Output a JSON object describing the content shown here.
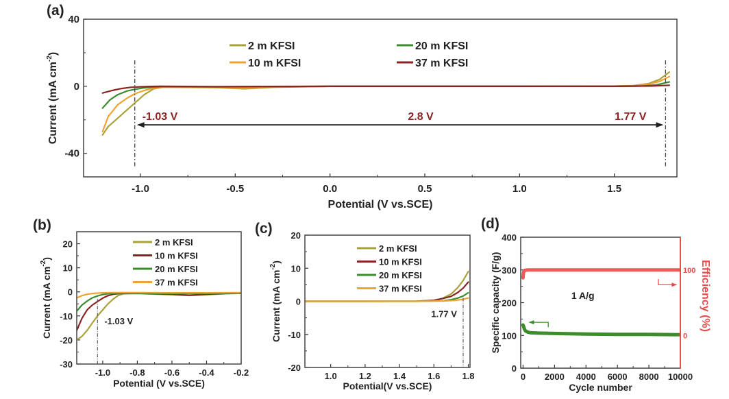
{
  "chart_data": [
    {
      "id": "a",
      "type": "line",
      "panel_label": "(a)",
      "xlabel": "Potential (V vs.SCE)",
      "ylabel": "Current (mA cm-2)",
      "ylabel_parts": {
        "main": "Current (mA cm",
        "sup": "-2",
        "close": ")"
      },
      "xlim": [
        -1.3,
        1.83
      ],
      "ylim": [
        -54,
        40
      ],
      "xticks": [
        -1.0,
        -0.5,
        0.0,
        0.5,
        1.0,
        1.5
      ],
      "xtick_labels": [
        "-1.0",
        "-0.5",
        "0.0",
        "0.5",
        "1.0",
        "1.5"
      ],
      "yticks": [
        40,
        0,
        -40
      ],
      "ytick_labels": [
        "40",
        "0",
        "-40"
      ],
      "legend": {
        "placement": "top-center",
        "columns": 2
      },
      "series": [
        {
          "name": "2 m KFSI",
          "color": "#a8a23a",
          "x": [
            -1.2,
            -1.17,
            -1.12,
            -1.07,
            -1.03,
            -0.98,
            -0.93,
            -0.88,
            -0.6,
            -0.45,
            -0.3,
            0.0,
            0.5,
            1.0,
            1.5,
            1.6,
            1.68,
            1.74,
            1.79
          ],
          "y": [
            -29,
            -24,
            -19,
            -14,
            -10,
            -5,
            -1.5,
            -0.5,
            -0.8,
            -1.5,
            -0.6,
            0,
            0,
            0,
            0.1,
            0.4,
            1.6,
            4.2,
            8.5
          ]
        },
        {
          "name": "10 m KFSI",
          "color": "#f0a232",
          "x": [
            -1.2,
            -1.17,
            -1.12,
            -1.07,
            -1.03,
            -0.98,
            -0.93,
            -0.88,
            -0.6,
            -0.45,
            -0.3,
            0.0,
            0.5,
            1.0,
            1.5,
            1.6,
            1.68,
            1.74,
            1.79
          ],
          "y": [
            -27,
            -18,
            -11,
            -7,
            -4.5,
            -2.5,
            -1.0,
            -0.5,
            -0.6,
            -0.9,
            -0.4,
            0,
            0,
            0,
            0.1,
            0.3,
            1.2,
            3.0,
            5.8
          ]
        },
        {
          "name": "20 m KFSI",
          "color": "#3c8c2c",
          "x": [
            -1.2,
            -1.16,
            -1.12,
            -1.07,
            -1.03,
            -0.98,
            -0.93,
            -0.88,
            -0.6,
            -0.3,
            0.0,
            0.5,
            1.0,
            1.5,
            1.65,
            1.72,
            1.79
          ],
          "y": [
            -13,
            -8,
            -5,
            -2.8,
            -1.8,
            -0.9,
            -0.4,
            -0.2,
            -0.3,
            -0.2,
            0,
            0,
            0,
            0,
            0.2,
            0.8,
            2.6
          ]
        },
        {
          "name": "37 m KFSI",
          "color": "#8b2323",
          "x": [
            -1.2,
            -1.15,
            -1.1,
            -1.05,
            -1.0,
            -0.95,
            -0.9,
            -0.6,
            -0.3,
            0.0,
            0.5,
            1.0,
            1.5,
            1.7,
            1.79
          ],
          "y": [
            -4,
            -2.5,
            -1.3,
            -0.6,
            -0.3,
            -0.1,
            0,
            -0.2,
            -0.1,
            0,
            0,
            0,
            0,
            0.2,
            0.6
          ]
        }
      ],
      "annotations": {
        "vline_left": -1.03,
        "vline_right": 1.77,
        "arrow_y": -23,
        "left_label": "-1.03 V",
        "center_label": "2.8 V",
        "right_label": "1.77 V",
        "label_color": "#8b2323"
      }
    },
    {
      "id": "b",
      "type": "line",
      "panel_label": "(b)",
      "xlabel": "Potential (V vs.SCE)",
      "ylabel_parts": {
        "main": "Current (mA cm",
        "sup": "-2",
        "close": ")"
      },
      "xlim": [
        -1.15,
        -0.2
      ],
      "ylim": [
        -30,
        25
      ],
      "xticks": [
        -1.0,
        -0.8,
        -0.6,
        -0.4,
        -0.2
      ],
      "xtick_labels": [
        "-1.0",
        "-0.8",
        "-0.6",
        "-0.4",
        "-0.2"
      ],
      "yticks": [
        20,
        10,
        0,
        -10,
        -20,
        -30
      ],
      "ytick_labels": [
        "20",
        "10",
        "0",
        "-10",
        "-20",
        "-30"
      ],
      "legend": {
        "placement": "top-right",
        "columns": 1
      },
      "series": [
        {
          "name": "2 m KFSI",
          "color": "#a8a23a",
          "x": [
            -1.15,
            -1.12,
            -1.09,
            -1.06,
            -1.03,
            -1.0,
            -0.97,
            -0.94,
            -0.91,
            -0.88,
            -0.8,
            -0.6,
            -0.5,
            -0.4,
            -0.3,
            -0.2
          ],
          "y": [
            -20,
            -18.5,
            -16,
            -13,
            -10,
            -7.5,
            -5,
            -3,
            -1.5,
            -0.8,
            -0.7,
            -1.2,
            -1.5,
            -1.2,
            -0.8,
            -0.6
          ]
        },
        {
          "name": "10 m KFSI",
          "color": "#8b2323",
          "x": [
            -1.15,
            -1.12,
            -1.09,
            -1.06,
            -1.03,
            -1.0,
            -0.97,
            -0.94,
            -0.9,
            -0.8,
            -0.6,
            -0.5,
            -0.4,
            -0.3,
            -0.2
          ],
          "y": [
            -16,
            -11,
            -7.5,
            -5.5,
            -4,
            -2.6,
            -1.6,
            -1.0,
            -0.7,
            -0.6,
            -1.0,
            -1.4,
            -1.0,
            -0.7,
            -0.5
          ]
        },
        {
          "name": "20 m KFSI",
          "color": "#3c8c2c",
          "x": [
            -1.15,
            -1.12,
            -1.09,
            -1.06,
            -1.03,
            -1.0,
            -0.96,
            -0.92,
            -0.85,
            -0.6,
            -0.4,
            -0.2
          ],
          "y": [
            -8,
            -5.5,
            -3.8,
            -2.5,
            -1.7,
            -1.1,
            -0.7,
            -0.5,
            -0.5,
            -0.7,
            -0.6,
            -0.5
          ]
        },
        {
          "name": "37 m KFSI",
          "color": "#f0a232",
          "x": [
            -1.15,
            -1.12,
            -1.09,
            -1.06,
            -1.03,
            -1.0,
            -0.95,
            -0.8,
            -0.6,
            -0.4,
            -0.2
          ],
          "y": [
            -2.5,
            -1.6,
            -1.0,
            -0.7,
            -0.5,
            -0.4,
            -0.3,
            -0.3,
            -0.4,
            -0.4,
            -0.3
          ]
        }
      ],
      "annotations": {
        "vline": -1.03,
        "label": "-1.03 V"
      }
    },
    {
      "id": "c",
      "type": "line",
      "panel_label": "(c)",
      "xlabel": "Potential(V vs.SCE)",
      "ylabel_parts": {
        "main": "Current (mA cm",
        "sup": "-2",
        "close": ")"
      },
      "xlim": [
        0.85,
        1.81
      ],
      "ylim": [
        -20,
        20
      ],
      "xticks": [
        1.0,
        1.2,
        1.4,
        1.6,
        1.8
      ],
      "xtick_labels": [
        "1.0",
        "1.2",
        "1.4",
        "1.6",
        "1.8"
      ],
      "yticks": [
        20,
        10,
        0,
        -10,
        -20
      ],
      "ytick_labels": [
        "20",
        "10",
        "0",
        "-10",
        "-20"
      ],
      "legend": {
        "placement": "top-center",
        "columns": 1
      },
      "series": [
        {
          "name": "2 m KFSI",
          "color": "#a8a23a",
          "x": [
            0.85,
            1.2,
            1.5,
            1.6,
            1.65,
            1.7,
            1.74,
            1.77,
            1.8
          ],
          "y": [
            0,
            0,
            0.05,
            0.3,
            0.9,
            2.2,
            4.2,
            6.3,
            9
          ]
        },
        {
          "name": "10 m KFSI",
          "color": "#8b2323",
          "x": [
            0.85,
            1.2,
            1.5,
            1.6,
            1.65,
            1.7,
            1.74,
            1.77,
            1.8
          ],
          "y": [
            0,
            0,
            0.05,
            0.3,
            0.8,
            1.5,
            2.7,
            4.0,
            5.8
          ]
        },
        {
          "name": "20 m KFSI",
          "color": "#3c8c2c",
          "x": [
            0.85,
            1.2,
            1.5,
            1.65,
            1.7,
            1.74,
            1.77,
            1.8
          ],
          "y": [
            0,
            0,
            0,
            0.15,
            0.5,
            1.0,
            1.6,
            2.6
          ]
        },
        {
          "name": "37 m KFSI",
          "color": "#f0a232",
          "x": [
            0.85,
            1.2,
            1.5,
            1.65,
            1.72,
            1.77,
            1.8
          ],
          "y": [
            0,
            0,
            0,
            0.1,
            0.3,
            0.6,
            1.0
          ]
        }
      ],
      "annotations": {
        "vline": 1.77,
        "label": "1.77 V"
      }
    },
    {
      "id": "d",
      "type": "line",
      "panel_label": "(d)",
      "xlabel": "Cycle number",
      "ylabel": "Specific capacity (F/g)",
      "ylabel_right": "Efficiency (%)",
      "xlim": [
        -150,
        10000
      ],
      "ylim": [
        0,
        400
      ],
      "ylim_right_mapping": {
        "0": 100,
        "100": 300
      },
      "xticks": [
        0,
        2000,
        4000,
        6000,
        8000,
        10000
      ],
      "xtick_labels": [
        "0",
        "2000",
        "4000",
        "6000",
        "8000",
        "10000"
      ],
      "yticks": [
        0,
        100,
        200,
        300,
        400
      ],
      "ytick_labels": [
        "0",
        "100",
        "200",
        "300",
        "400"
      ],
      "yticks_right": [
        0,
        100
      ],
      "ytick_labels_right": [
        "0",
        "100"
      ],
      "series": [
        {
          "name": "Specific capacity",
          "axis": "left",
          "color": "#3c8c2c",
          "x": [
            0,
            30,
            80,
            150,
            300,
            500,
            1000,
            2000,
            4000,
            6000,
            8000,
            10000
          ],
          "y": [
            132,
            128,
            120,
            114,
            110,
            108,
            107,
            106,
            104,
            103,
            103,
            102
          ]
        },
        {
          "name": "Efficiency",
          "axis": "right",
          "color": "#ee5a5a",
          "x": [
            0,
            20,
            60,
            120,
            300,
            1000,
            4000,
            10000
          ],
          "y": [
            88,
            95,
            98,
            99.5,
            100,
            100,
            100,
            100
          ]
        }
      ],
      "annotations": {
        "label": "1 A/g",
        "axis_color_right": "#e84c4c"
      }
    }
  ]
}
